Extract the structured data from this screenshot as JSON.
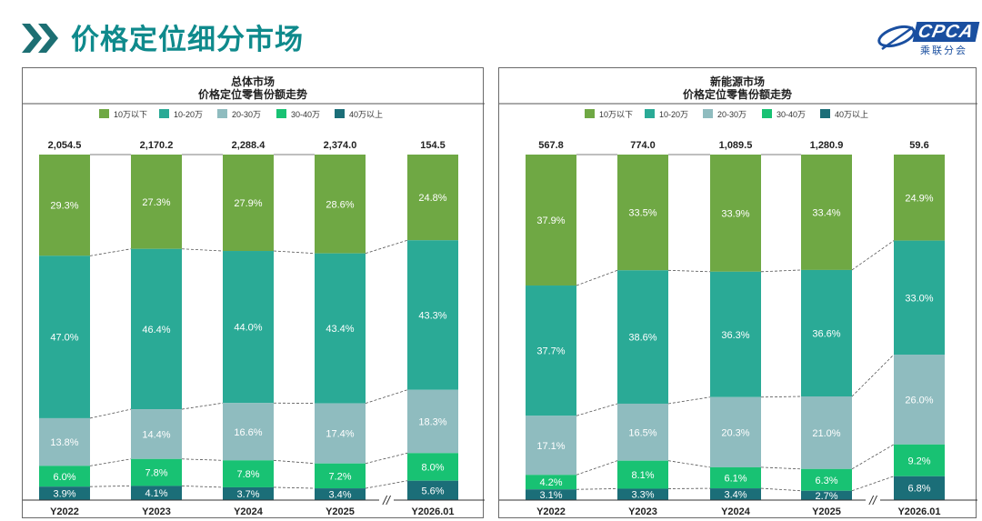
{
  "header": {
    "title": "价格定位细分市场",
    "logo_text": "CPCA",
    "logo_sub": "乘联分会",
    "accent": "#0f8a8c"
  },
  "legend_colors": [
    "#6fa844",
    "#2aaa96",
    "#8fbcbf",
    "#18c273",
    "#1b6e78"
  ],
  "chart_data": [
    {
      "type": "bar",
      "stacked": "100%",
      "title": "总体市场",
      "subtitle": "价格定位零售份额走势",
      "categories": [
        "Y2022",
        "Y2023",
        "Y2024",
        "Y2025",
        "Y2026.01"
      ],
      "totals": [
        "2,054.5",
        "2,170.2",
        "2,288.4",
        "2,374.0",
        "154.5"
      ],
      "series": [
        {
          "name": "10万以下",
          "values": [
            29.3,
            27.3,
            27.9,
            28.6,
            24.8
          ],
          "labels": [
            "29.3%",
            "27.3%",
            "27.9%",
            "28.6%",
            "24.8%"
          ]
        },
        {
          "name": "10-20万",
          "values": [
            47.0,
            46.4,
            44.0,
            43.4,
            43.3
          ],
          "labels": [
            "47.0%",
            "46.4%",
            "44.0%",
            "43.4%",
            "43.3%"
          ]
        },
        {
          "name": "20-30万",
          "values": [
            13.8,
            14.4,
            16.6,
            17.4,
            18.3
          ],
          "labels": [
            "13.8%",
            "14.4%",
            "16.6%",
            "17.4%",
            "18.3%"
          ]
        },
        {
          "name": "30-40万",
          "values": [
            6.0,
            7.8,
            7.8,
            7.2,
            8.0
          ],
          "labels": [
            "6.0%",
            "7.8%",
            "7.8%",
            "7.2%",
            "8.0%"
          ]
        },
        {
          "name": "40万以上",
          "values": [
            3.9,
            4.1,
            3.7,
            3.4,
            5.6
          ],
          "labels": [
            "3.9%",
            "4.1%",
            "3.7%",
            "3.4%",
            "5.6%"
          ]
        }
      ],
      "ylim": [
        0,
        100
      ],
      "axis_break": "//"
    },
    {
      "type": "bar",
      "stacked": "100%",
      "title": "新能源市场",
      "subtitle": "价格定位零售份额走势",
      "categories": [
        "Y2022",
        "Y2023",
        "Y2024",
        "Y2025",
        "Y2026.01"
      ],
      "totals": [
        "567.8",
        "774.0",
        "1,089.5",
        "1,280.9",
        "59.6"
      ],
      "series": [
        {
          "name": "10万以下",
          "values": [
            37.9,
            33.5,
            33.9,
            33.4,
            24.9
          ],
          "labels": [
            "37.9%",
            "33.5%",
            "33.9%",
            "33.4%",
            "24.9%"
          ]
        },
        {
          "name": "10-20万",
          "values": [
            37.7,
            38.6,
            36.3,
            36.6,
            33.0
          ],
          "labels": [
            "37.7%",
            "38.6%",
            "36.3%",
            "36.6%",
            "33.0%"
          ]
        },
        {
          "name": "20-30万",
          "values": [
            17.1,
            16.5,
            20.3,
            21.0,
            26.0
          ],
          "labels": [
            "17.1%",
            "16.5%",
            "20.3%",
            "21.0%",
            "26.0%"
          ]
        },
        {
          "name": "30-40万",
          "values": [
            4.2,
            8.1,
            6.1,
            6.3,
            9.2
          ],
          "labels": [
            "4.2%",
            "8.1%",
            "6.1%",
            "6.3%",
            "9.2%"
          ]
        },
        {
          "name": "40万以上",
          "values": [
            3.1,
            3.3,
            3.4,
            2.7,
            6.8
          ],
          "labels": [
            "3.1%",
            "3.3%",
            "3.4%",
            "2.7%",
            "6.8%"
          ]
        }
      ],
      "ylim": [
        0,
        100
      ],
      "axis_break": "//"
    }
  ]
}
